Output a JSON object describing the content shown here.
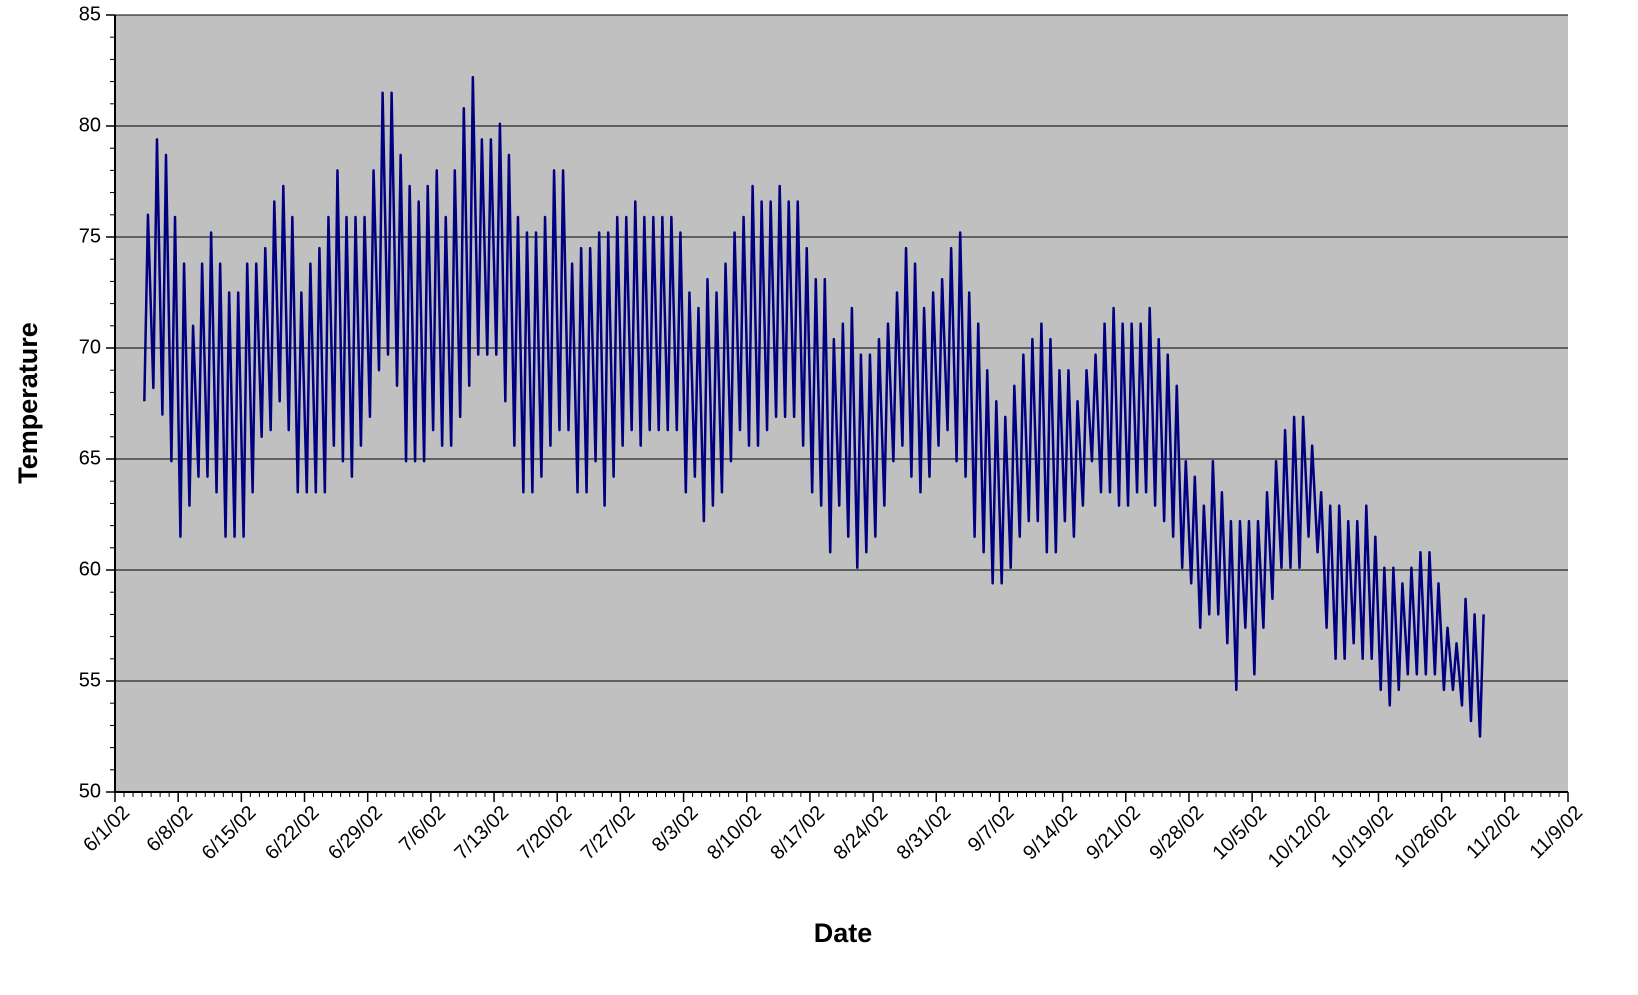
{
  "chart_data": {
    "type": "line",
    "x_label": "Date",
    "y_label": "Temperature",
    "x": [
      "6/4/02",
      "6/5/02",
      "6/6/02",
      "6/7/02",
      "6/8/02",
      "6/9/02",
      "6/10/02",
      "6/11/02",
      "6/12/02",
      "6/13/02",
      "6/14/02",
      "6/15/02",
      "6/16/02",
      "6/17/02",
      "6/18/02",
      "6/19/02",
      "6/20/02",
      "6/21/02",
      "6/22/02",
      "6/23/02",
      "6/24/02",
      "6/25/02",
      "6/26/02",
      "6/27/02",
      "6/28/02",
      "6/29/02",
      "6/30/02",
      "7/1/02",
      "7/2/02",
      "7/3/02",
      "7/4/02",
      "7/5/02",
      "7/6/02",
      "7/7/02",
      "7/8/02",
      "7/9/02",
      "7/10/02",
      "7/11/02",
      "7/12/02",
      "7/13/02",
      "7/14/02",
      "7/15/02",
      "7/16/02",
      "7/17/02",
      "7/18/02",
      "7/19/02",
      "7/20/02",
      "7/21/02",
      "7/22/02",
      "7/23/02",
      "7/24/02",
      "7/25/02",
      "7/26/02",
      "7/27/02",
      "7/28/02",
      "7/29/02",
      "7/30/02",
      "7/31/02",
      "8/1/02",
      "8/2/02",
      "8/3/02",
      "8/4/02",
      "8/5/02",
      "8/6/02",
      "8/7/02",
      "8/8/02",
      "8/9/02",
      "8/10/02",
      "8/11/02",
      "8/12/02",
      "8/13/02",
      "8/14/02",
      "8/15/02",
      "8/16/02",
      "8/17/02",
      "8/18/02",
      "8/19/02",
      "8/20/02",
      "8/21/02",
      "8/22/02",
      "8/23/02",
      "8/24/02",
      "8/25/02",
      "8/26/02",
      "8/27/02",
      "8/28/02",
      "8/29/02",
      "8/30/02",
      "8/31/02",
      "9/1/02",
      "9/2/02",
      "9/3/02",
      "9/4/02",
      "9/5/02",
      "9/6/02",
      "9/7/02",
      "9/8/02",
      "9/9/02",
      "9/10/02",
      "9/11/02",
      "9/12/02",
      "9/13/02",
      "9/14/02",
      "9/15/02",
      "9/16/02",
      "9/17/02",
      "9/18/02",
      "9/19/02",
      "9/20/02",
      "9/21/02",
      "9/22/02",
      "9/23/02",
      "9/24/02",
      "9/25/02",
      "9/26/02",
      "9/27/02",
      "9/28/02",
      "9/29/02",
      "9/30/02",
      "10/1/02",
      "10/2/02",
      "10/3/02",
      "10/4/02",
      "10/5/02",
      "10/6/02",
      "10/7/02",
      "10/8/02",
      "10/9/02",
      "10/10/02",
      "10/11/02",
      "10/12/02",
      "10/13/02",
      "10/14/02",
      "10/15/02",
      "10/16/02",
      "10/17/02",
      "10/18/02",
      "10/19/02",
      "10/20/02",
      "10/21/02",
      "10/22/02",
      "10/23/02",
      "10/24/02",
      "10/25/02",
      "10/26/02",
      "10/27/02",
      "10/28/02",
      "10/29/02",
      "10/30/02"
    ],
    "series": [
      {
        "color": "#000080",
        "values": [
          67.6,
          68.2,
          67,
          64.9,
          61.5,
          62.9,
          64.2,
          64.2,
          63.5,
          61.5,
          61.5,
          61.5,
          63.5,
          66,
          66.3,
          67.6,
          66.3,
          63.5,
          63.5,
          63.5,
          63.5,
          65.6,
          64.9,
          64.2,
          65.6,
          66.9,
          69,
          69.7,
          68.3,
          64.9,
          64.9,
          64.9,
          66.3,
          65.6,
          65.6,
          66.9,
          68.3,
          69.7,
          69.7,
          69.7,
          67.6,
          65.6,
          63.5,
          63.5,
          64.2,
          65.6,
          66.3,
          66.3,
          63.5,
          63.5,
          64.9,
          62.9,
          64.2,
          65.6,
          66.3,
          65.6,
          66.3,
          66.3,
          66.3,
          66.3,
          63.5,
          64.2,
          62.2,
          62.9,
          63.5,
          64.9,
          66.3,
          65.6,
          65.6,
          66.3,
          66.9,
          66.9,
          66.9,
          65.6,
          63.5,
          62.9,
          60.8,
          62.9,
          61.5,
          60.1,
          60.8,
          61.5,
          62.9,
          64.9,
          65.6,
          64.2,
          63.5,
          64.2,
          65.6,
          66.3,
          64.9,
          64.2,
          61.5,
          60.8,
          59.4,
          59.4,
          60.1,
          61.5,
          62.2,
          62.2,
          60.8,
          60.8,
          62.2,
          61.5,
          62.9,
          64.9,
          63.5,
          63.5,
          62.9,
          62.9,
          63.5,
          63.5,
          62.9,
          62.2,
          61.5,
          60.1,
          59.4,
          57.4,
          58,
          58,
          56.7,
          54.6,
          57.4,
          55.3,
          57.4,
          58.7,
          60.1,
          60.1,
          60.1,
          61.5,
          60.8,
          57.4,
          56,
          56,
          56.7,
          56,
          56,
          54.6,
          53.9,
          54.6,
          55.3,
          55.3,
          55.3,
          55.3,
          54.6,
          54.6,
          53.9,
          53.2,
          52.5
        ]
      },
      {
        "color": "#000080",
        "values": [
          76,
          79.4,
          78.7,
          75.9,
          73.8,
          71,
          73.8,
          75.2,
          73.8,
          72.5,
          72.5,
          73.8,
          73.8,
          74.5,
          76.6,
          77.3,
          75.9,
          72.5,
          73.8,
          74.5,
          75.9,
          78,
          75.9,
          75.9,
          75.9,
          78,
          81.5,
          81.5,
          78.7,
          77.3,
          76.6,
          77.3,
          78,
          75.9,
          78,
          80.8,
          82.2,
          79.4,
          79.4,
          80.1,
          78.7,
          75.9,
          75.2,
          75.2,
          75.9,
          78,
          78,
          73.8,
          74.5,
          74.5,
          75.2,
          75.2,
          75.9,
          75.9,
          76.6,
          75.9,
          75.9,
          75.9,
          75.9,
          75.2,
          72.5,
          71.8,
          73.1,
          72.5,
          73.8,
          75.2,
          75.9,
          77.3,
          76.6,
          76.6,
          77.3,
          76.6,
          76.6,
          74.5,
          73.1,
          73.1,
          70.4,
          71.1,
          71.8,
          69.7,
          69.7,
          70.4,
          71.1,
          72.5,
          74.5,
          73.8,
          71.8,
          72.5,
          73.1,
          74.5,
          75.2,
          72.5,
          71.1,
          69,
          67.6,
          66.9,
          68.3,
          69.7,
          70.4,
          71.1,
          70.4,
          69,
          69,
          67.6,
          69,
          69.7,
          71.1,
          71.8,
          71.1,
          71.1,
          71.1,
          71.8,
          70.4,
          69.7,
          68.3,
          64.9,
          64.2,
          62.9,
          64.9,
          63.5,
          62.2,
          62.2,
          62.2,
          62.2,
          63.5,
          64.9,
          66.3,
          66.9,
          66.9,
          65.6,
          63.5,
          62.9,
          62.9,
          62.2,
          62.2,
          62.9,
          61.5,
          60.1,
          60.1,
          59.4,
          60.1,
          60.8,
          60.8,
          59.4,
          57.4,
          56.7,
          58.7,
          58,
          58
        ]
      }
    ],
    "xlim": [
      "6/1/02",
      "11/9/02"
    ],
    "xticks": [
      "6/1/02",
      "6/8/02",
      "6/15/02",
      "6/22/02",
      "6/29/02",
      "7/6/02",
      "7/13/02",
      "7/20/02",
      "7/27/02",
      "8/3/02",
      "8/10/02",
      "8/17/02",
      "8/24/02",
      "8/31/02",
      "9/7/02",
      "9/14/02",
      "9/21/02",
      "9/28/02",
      "10/5/02",
      "10/12/02",
      "10/19/02",
      "10/26/02",
      "11/2/02",
      "11/9/02"
    ],
    "ylim": [
      50,
      85
    ],
    "yticks": [
      50,
      55,
      60,
      65,
      70,
      75,
      80,
      85
    ],
    "grid": true,
    "background": "#c0c0c0"
  }
}
